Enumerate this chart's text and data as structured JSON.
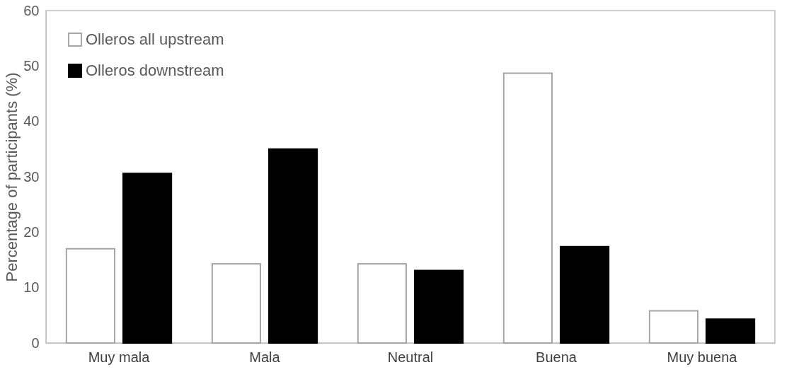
{
  "chart_data": {
    "type": "bar",
    "ylabel": "Percentage of participants (%)",
    "categories": [
      "Muy mala",
      "Mala",
      "Neutral",
      "Buena",
      "Muy buena"
    ],
    "series": [
      {
        "name": "Olleros all upstream",
        "color": "#ffffff",
        "values": [
          17.0,
          14.3,
          14.3,
          48.7,
          5.8
        ]
      },
      {
        "name": "Olleros downstream",
        "color": "#000000",
        "values": [
          30.6,
          35.0,
          13.1,
          17.4,
          4.3
        ]
      }
    ],
    "ylim": [
      0,
      60
    ],
    "yticks": [
      0,
      10,
      20,
      30,
      40,
      50,
      60
    ],
    "grid": false,
    "legend": "top left"
  }
}
